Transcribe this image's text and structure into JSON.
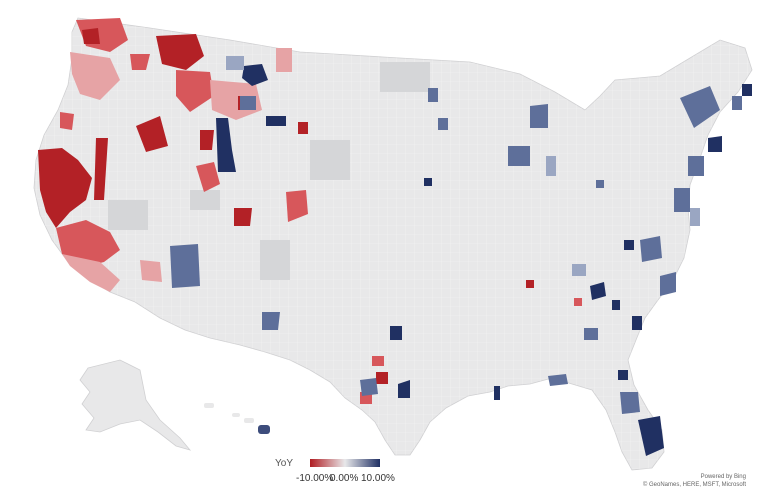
{
  "legend": {
    "title": "YoY",
    "ticks": [
      "-10.00%",
      "0.00%",
      "10.00%"
    ],
    "colors": {
      "neg": "#b01c22",
      "mid": "#e8e8ea",
      "pos": "#1f2f63"
    }
  },
  "attribution": {
    "line1": "Powered by Bing",
    "line2": "© GeoNames, HERE, MSFT, Microsoft"
  },
  "colors": {
    "land": "#e8e8e9",
    "county_border": "#ffffff",
    "neutral_dark": "#d5d6d8",
    "red_strong": "#b32126",
    "red_mid": "#d7575b",
    "red_light": "#e6a3a5",
    "blue_strong": "#203062",
    "blue_mid": "#5e6f9a",
    "blue_light": "#9aa6c2"
  },
  "regions": [
    "us-mainland",
    "alaska",
    "hawaii"
  ]
}
